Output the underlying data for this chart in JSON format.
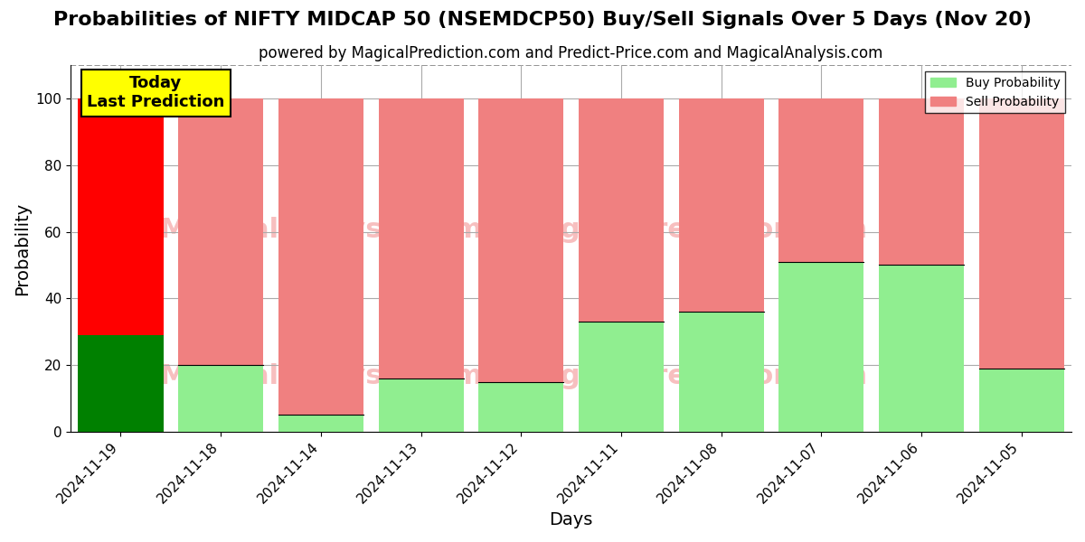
{
  "title": "Probabilities of NIFTY MIDCAP 50 (NSEMDCP50) Buy/Sell Signals Over 5 Days (Nov 20)",
  "subtitle": "powered by MagicalPrediction.com and Predict-Price.com and MagicalAnalysis.com",
  "xlabel": "Days",
  "ylabel": "Probability",
  "categories": [
    "2024-11-19",
    "2024-11-18",
    "2024-11-14",
    "2024-11-13",
    "2024-11-12",
    "2024-11-11",
    "2024-11-08",
    "2024-11-07",
    "2024-11-06",
    "2024-11-05"
  ],
  "buy_values": [
    29,
    20,
    5,
    16,
    15,
    33,
    36,
    51,
    50,
    19
  ],
  "sell_values": [
    71,
    80,
    95,
    84,
    85,
    67,
    64,
    49,
    50,
    81
  ],
  "today_buy_color": "#008000",
  "today_sell_color": "#FF0000",
  "other_buy_color": "#90EE90",
  "other_sell_color": "#F08080",
  "today_label_bg": "#FFFF00",
  "today_label_text": "Today\nLast Prediction",
  "legend_buy": "Buy Probability",
  "legend_sell": "Sell Probability",
  "ylim": [
    0,
    110
  ],
  "dashed_line_y": 110,
  "bar_width": 0.85,
  "grid_color": "#aaaaaa",
  "title_fontsize": 16,
  "subtitle_fontsize": 12,
  "axis_label_fontsize": 14,
  "tick_fontsize": 11
}
